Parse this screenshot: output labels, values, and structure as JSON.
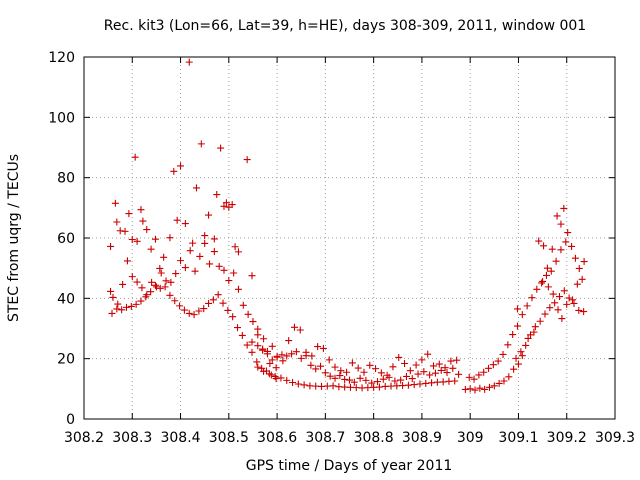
{
  "chart_data": {
    "type": "scatter",
    "title": "Rec. kit3 (Lon=66, Lat=39, h=HE), days 308-309, 2011, window 001",
    "xlabel": "GPS time / Days of year 2011",
    "ylabel": "STEC from uqrg / TECUs",
    "xlim": [
      308.2,
      309.3
    ],
    "ylim": [
      0,
      120
    ],
    "xticks": [
      "308.2",
      "308.3",
      "308.4",
      "308.5",
      "308.6",
      "308.7",
      "308.8",
      "308.9",
      "309",
      "309.1",
      "309.2",
      "309.3"
    ],
    "yticks": [
      "0",
      "20",
      "40",
      "60",
      "80",
      "100",
      "120"
    ],
    "marker_color": "#cc0000",
    "marker": "+",
    "series": [
      {
        "name": "STEC",
        "points": [
          [
            308.255,
            57.2
          ],
          [
            308.265,
            71.5
          ],
          [
            308.268,
            65.3
          ],
          [
            308.275,
            62.4
          ],
          [
            308.285,
            62.2
          ],
          [
            308.293,
            68.1
          ],
          [
            308.3,
            59.5
          ],
          [
            308.306,
            86.8
          ],
          [
            308.31,
            58.9
          ],
          [
            308.318,
            69.4
          ],
          [
            308.322,
            65.6
          ],
          [
            308.33,
            62.8
          ],
          [
            308.339,
            56.3
          ],
          [
            308.348,
            59.6
          ],
          [
            308.357,
            49.9
          ],
          [
            308.365,
            53.6
          ],
          [
            308.378,
            60.1
          ],
          [
            308.386,
            82.1
          ],
          [
            308.393,
            65.9
          ],
          [
            308.4,
            83.9
          ],
          [
            308.41,
            64.8
          ],
          [
            308.418,
            118.3
          ],
          [
            308.425,
            58.3
          ],
          [
            308.433,
            76.6
          ],
          [
            308.443,
            91.2
          ],
          [
            308.45,
            60.8
          ],
          [
            308.458,
            67.6
          ],
          [
            308.47,
            59.7
          ],
          [
            308.475,
            74.4
          ],
          [
            308.483,
            89.8
          ],
          [
            308.49,
            70.5
          ],
          [
            308.495,
            71.7
          ],
          [
            308.5,
            70.2
          ],
          [
            308.507,
            71.1
          ],
          [
            308.513,
            57.1
          ],
          [
            308.52,
            55.4
          ],
          [
            308.538,
            86.0
          ],
          [
            308.548,
            47.5
          ],
          [
            308.255,
            42.3
          ],
          [
            308.26,
            40.3
          ],
          [
            308.27,
            38.1
          ],
          [
            308.28,
            44.6
          ],
          [
            308.29,
            52.4
          ],
          [
            308.3,
            47.2
          ],
          [
            308.31,
            45.4
          ],
          [
            308.32,
            43.5
          ],
          [
            308.33,
            41.2
          ],
          [
            308.34,
            45.3
          ],
          [
            308.35,
            43.8
          ],
          [
            308.36,
            48.4
          ],
          [
            308.37,
            45.8
          ],
          [
            308.38,
            45.3
          ],
          [
            308.39,
            48.2
          ],
          [
            308.4,
            52.5
          ],
          [
            308.41,
            50.2
          ],
          [
            308.42,
            55.8
          ],
          [
            308.43,
            49.0
          ],
          [
            308.44,
            53.9
          ],
          [
            308.45,
            58.2
          ],
          [
            308.46,
            51.4
          ],
          [
            308.47,
            55.5
          ],
          [
            308.48,
            50.6
          ],
          [
            308.49,
            49.3
          ],
          [
            308.5,
            45.9
          ],
          [
            308.51,
            48.4
          ],
          [
            308.52,
            43.0
          ],
          [
            308.53,
            37.7
          ],
          [
            308.54,
            34.7
          ],
          [
            308.55,
            32.3
          ],
          [
            308.56,
            27.9
          ],
          [
            308.57,
            22.8
          ],
          [
            308.58,
            21.6
          ],
          [
            308.59,
            24.1
          ],
          [
            308.6,
            20.8
          ],
          [
            308.258,
            35.0
          ],
          [
            308.268,
            36.5
          ],
          [
            308.278,
            36.2
          ],
          [
            308.288,
            37.0
          ],
          [
            308.298,
            37.3
          ],
          [
            308.308,
            38.0
          ],
          [
            308.318,
            39.1
          ],
          [
            308.328,
            40.5
          ],
          [
            308.338,
            42.2
          ],
          [
            308.348,
            44.3
          ],
          [
            308.358,
            43.3
          ],
          [
            308.368,
            43.8
          ],
          [
            308.378,
            41.0
          ],
          [
            308.388,
            39.2
          ],
          [
            308.398,
            37.5
          ],
          [
            308.408,
            36.1
          ],
          [
            308.418,
            35.0
          ],
          [
            308.428,
            34.6
          ],
          [
            308.438,
            35.8
          ],
          [
            308.448,
            36.6
          ],
          [
            308.458,
            38.3
          ],
          [
            308.468,
            39.5
          ],
          [
            308.478,
            41.2
          ],
          [
            308.488,
            38.4
          ],
          [
            308.498,
            36.0
          ],
          [
            308.508,
            33.9
          ],
          [
            308.518,
            30.3
          ],
          [
            308.528,
            27.7
          ],
          [
            308.538,
            24.5
          ],
          [
            308.548,
            22.1
          ],
          [
            308.558,
            18.9
          ],
          [
            308.568,
            16.8
          ],
          [
            308.578,
            15.9
          ],
          [
            308.588,
            14.6
          ],
          [
            308.598,
            13.4
          ],
          [
            308.548,
            25.5
          ],
          [
            308.56,
            24.3
          ],
          [
            308.57,
            23.2
          ],
          [
            308.58,
            22.4
          ],
          [
            308.59,
            19.6
          ],
          [
            308.6,
            20.5
          ],
          [
            308.61,
            21.3
          ],
          [
            308.62,
            20.9
          ],
          [
            308.63,
            21.6
          ],
          [
            308.64,
            22.3
          ],
          [
            308.65,
            20.1
          ],
          [
            308.66,
            21.0
          ],
          [
            308.67,
            17.8
          ],
          [
            308.68,
            16.6
          ],
          [
            308.69,
            17.5
          ],
          [
            308.7,
            15.3
          ],
          [
            308.71,
            14.2
          ],
          [
            308.72,
            13.5
          ],
          [
            308.73,
            14.4
          ],
          [
            308.74,
            13.1
          ],
          [
            308.75,
            12.9
          ],
          [
            308.56,
            17.2
          ],
          [
            308.572,
            15.8
          ],
          [
            308.584,
            15.0
          ],
          [
            308.596,
            14.1
          ],
          [
            308.608,
            13.6
          ],
          [
            308.62,
            12.8
          ],
          [
            308.632,
            12.1
          ],
          [
            308.644,
            11.6
          ],
          [
            308.656,
            11.3
          ],
          [
            308.668,
            11.0
          ],
          [
            308.68,
            10.9
          ],
          [
            308.692,
            10.8
          ],
          [
            308.704,
            10.9
          ],
          [
            308.716,
            11.0
          ],
          [
            308.728,
            10.7
          ],
          [
            308.74,
            10.6
          ],
          [
            308.752,
            10.5
          ],
          [
            308.764,
            10.4
          ],
          [
            308.776,
            10.3
          ],
          [
            308.788,
            10.4
          ],
          [
            308.8,
            10.5
          ],
          [
            308.812,
            10.6
          ],
          [
            308.824,
            10.8
          ],
          [
            308.836,
            10.9
          ],
          [
            308.848,
            11.0
          ],
          [
            308.86,
            11.1
          ],
          [
            308.872,
            11.2
          ],
          [
            308.884,
            11.4
          ],
          [
            308.896,
            11.6
          ],
          [
            308.908,
            11.8
          ],
          [
            308.92,
            12.0
          ],
          [
            308.932,
            12.2
          ],
          [
            308.944,
            12.3
          ],
          [
            308.956,
            12.5
          ],
          [
            308.968,
            12.6
          ],
          [
            308.56,
            29.8
          ],
          [
            308.572,
            26.6
          ],
          [
            308.585,
            18.4
          ],
          [
            308.598,
            17.0
          ],
          [
            308.612,
            19.3
          ],
          [
            308.624,
            26.0
          ],
          [
            308.636,
            30.4
          ],
          [
            308.648,
            29.5
          ],
          [
            308.66,
            22.1
          ],
          [
            308.672,
            20.9
          ],
          [
            308.684,
            24.0
          ],
          [
            308.696,
            23.4
          ],
          [
            308.708,
            19.6
          ],
          [
            308.72,
            17.2
          ],
          [
            308.732,
            16.0
          ],
          [
            308.744,
            15.5
          ],
          [
            308.756,
            18.6
          ],
          [
            308.768,
            16.9
          ],
          [
            308.78,
            15.5
          ],
          [
            308.792,
            17.8
          ],
          [
            308.804,
            16.7
          ],
          [
            308.816,
            15.3
          ],
          [
            308.828,
            14.5
          ],
          [
            308.84,
            17.3
          ],
          [
            308.852,
            20.4
          ],
          [
            308.864,
            18.4
          ],
          [
            308.876,
            16.0
          ],
          [
            308.888,
            17.9
          ],
          [
            308.9,
            19.6
          ],
          [
            308.912,
            21.5
          ],
          [
            308.924,
            17.6
          ],
          [
            308.936,
            18.2
          ],
          [
            308.948,
            17.0
          ],
          [
            308.96,
            19.2
          ],
          [
            308.972,
            19.5
          ],
          [
            308.76,
            12.2
          ],
          [
            308.772,
            13.5
          ],
          [
            308.784,
            12.8
          ],
          [
            308.796,
            11.9
          ],
          [
            308.808,
            12.4
          ],
          [
            308.82,
            13.2
          ],
          [
            308.832,
            13.8
          ],
          [
            308.844,
            12.6
          ],
          [
            308.856,
            12.9
          ],
          [
            308.868,
            14.1
          ],
          [
            308.88,
            13.4
          ],
          [
            308.892,
            14.9
          ],
          [
            308.904,
            15.7
          ],
          [
            308.916,
            14.6
          ],
          [
            308.928,
            15.2
          ],
          [
            308.94,
            16.1
          ],
          [
            308.952,
            15.4
          ],
          [
            308.964,
            16.8
          ],
          [
            308.976,
            14.8
          ],
          [
            308.99,
            9.8
          ],
          [
            309.0,
            10.0
          ],
          [
            309.01,
            9.6
          ],
          [
            309.02,
            10.2
          ],
          [
            309.03,
            9.8
          ],
          [
            309.04,
            10.5
          ],
          [
            309.05,
            11.0
          ],
          [
            309.06,
            11.8
          ],
          [
            309.07,
            12.6
          ],
          [
            309.08,
            14.0
          ],
          [
            309.09,
            16.5
          ],
          [
            309.1,
            18.2
          ],
          [
            308.998,
            13.8
          ],
          [
            309.008,
            13.2
          ],
          [
            309.018,
            14.6
          ],
          [
            309.028,
            15.5
          ],
          [
            309.038,
            16.8
          ],
          [
            309.048,
            18.0
          ],
          [
            309.058,
            19.2
          ],
          [
            309.068,
            21.4
          ],
          [
            309.078,
            24.6
          ],
          [
            309.088,
            28.0
          ],
          [
            309.098,
            30.8
          ],
          [
            309.108,
            34.6
          ],
          [
            309.118,
            37.5
          ],
          [
            309.128,
            40.2
          ],
          [
            309.138,
            43.0
          ],
          [
            309.148,
            45.1
          ],
          [
            309.158,
            47.6
          ],
          [
            309.168,
            49.0
          ],
          [
            309.178,
            52.3
          ],
          [
            309.188,
            56.1
          ],
          [
            309.198,
            58.7
          ],
          [
            309.095,
            20.1
          ],
          [
            309.105,
            22.3
          ],
          [
            309.115,
            24.4
          ],
          [
            309.125,
            27.9
          ],
          [
            309.135,
            30.6
          ],
          [
            309.145,
            32.4
          ],
          [
            309.155,
            34.8
          ],
          [
            309.165,
            36.9
          ],
          [
            309.175,
            38.5
          ],
          [
            309.185,
            40.6
          ],
          [
            309.195,
            42.5
          ],
          [
            309.205,
            40.1
          ],
          [
            309.215,
            38.3
          ],
          [
            309.225,
            36.0
          ],
          [
            309.235,
            35.6
          ],
          [
            309.098,
            36.5
          ],
          [
            309.108,
            21.0
          ],
          [
            309.12,
            26.7
          ],
          [
            309.132,
            28.8
          ],
          [
            309.142,
            59.0
          ],
          [
            309.152,
            57.4
          ],
          [
            309.16,
            50.0
          ],
          [
            309.17,
            56.3
          ],
          [
            309.18,
            67.3
          ],
          [
            309.188,
            64.6
          ],
          [
            309.194,
            69.8
          ],
          [
            309.202,
            61.8
          ],
          [
            309.21,
            57.2
          ],
          [
            309.218,
            53.3
          ],
          [
            309.226,
            49.9
          ],
          [
            309.232,
            46.3
          ],
          [
            309.236,
            52.2
          ],
          [
            309.222,
            44.7
          ],
          [
            309.212,
            39.5
          ],
          [
            309.2,
            38.0
          ],
          [
            309.19,
            33.3
          ],
          [
            309.182,
            36.2
          ],
          [
            309.172,
            41.4
          ],
          [
            309.162,
            43.8
          ],
          [
            309.15,
            45.6
          ]
        ]
      }
    ]
  }
}
